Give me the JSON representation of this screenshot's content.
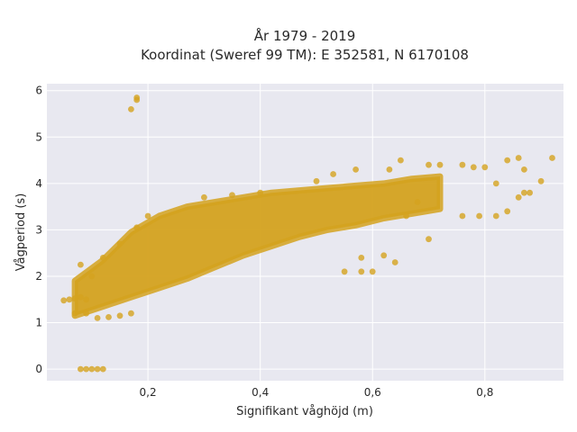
{
  "chart_data": {
    "type": "scatter",
    "title": "År 1979 - 2019",
    "subtitle": "Koordinat (Sweref 99 TM): E 352581, N 6170108",
    "xlabel": "Signifikant våghöjd (m)",
    "ylabel": "Vågperiod (s)",
    "xlim": [
      0.02,
      0.94
    ],
    "ylim": [
      -0.25,
      6.15
    ],
    "x_ticks": [
      0.2,
      0.4,
      0.6,
      0.8
    ],
    "x_tick_labels": [
      "0,2",
      "0,4",
      "0,6",
      "0,8"
    ],
    "y_ticks": [
      0,
      1,
      2,
      3,
      4,
      5,
      6
    ],
    "y_tick_labels": [
      "0",
      "1",
      "2",
      "3",
      "4",
      "5",
      "6"
    ],
    "grid": true,
    "legend": "none",
    "colors": {
      "marker": "#d4a21f",
      "plot_bg": "#e8e8f0",
      "grid": "#ffffff"
    },
    "series": [
      {
        "points": [
          [
            0.08,
            0
          ],
          [
            0.09,
            0
          ],
          [
            0.1,
            0
          ],
          [
            0.11,
            0
          ],
          [
            0.12,
            0
          ],
          [
            0.05,
            1.48
          ],
          [
            0.06,
            1.5
          ],
          [
            0.07,
            1.52
          ],
          [
            0.08,
            1.55
          ],
          [
            0.09,
            1.5
          ],
          [
            0.07,
            1.2
          ],
          [
            0.09,
            1.2
          ],
          [
            0.11,
            1.1
          ],
          [
            0.13,
            1.12
          ],
          [
            0.15,
            1.15
          ],
          [
            0.17,
            1.2
          ],
          [
            0.08,
            2.25
          ],
          [
            0.1,
            2.0
          ],
          [
            0.12,
            2.4
          ],
          [
            0.15,
            2.7
          ],
          [
            0.18,
            3.05
          ],
          [
            0.2,
            3.3
          ],
          [
            0.17,
            5.6
          ],
          [
            0.18,
            5.8
          ],
          [
            0.18,
            5.85
          ],
          [
            0.3,
            3.7
          ],
          [
            0.35,
            3.75
          ],
          [
            0.4,
            3.8
          ],
          [
            0.5,
            4.05
          ],
          [
            0.53,
            4.2
          ],
          [
            0.57,
            4.3
          ],
          [
            0.63,
            4.3
          ],
          [
            0.65,
            4.5
          ],
          [
            0.7,
            4.4
          ],
          [
            0.72,
            4.4
          ],
          [
            0.76,
            4.4
          ],
          [
            0.78,
            4.35
          ],
          [
            0.8,
            4.35
          ],
          [
            0.82,
            4.0
          ],
          [
            0.84,
            4.5
          ],
          [
            0.86,
            4.55
          ],
          [
            0.87,
            4.3
          ],
          [
            0.88,
            3.8
          ],
          [
            0.9,
            4.05
          ],
          [
            0.92,
            4.55
          ],
          [
            0.76,
            3.3
          ],
          [
            0.79,
            3.3
          ],
          [
            0.82,
            3.3
          ],
          [
            0.84,
            3.4
          ],
          [
            0.86,
            3.7
          ],
          [
            0.87,
            3.8
          ],
          [
            0.68,
            3.6
          ],
          [
            0.7,
            2.8
          ],
          [
            0.66,
            3.3
          ],
          [
            0.55,
            2.1
          ],
          [
            0.58,
            2.1
          ],
          [
            0.6,
            2.1
          ],
          [
            0.64,
            2.3
          ],
          [
            0.62,
            2.45
          ],
          [
            0.58,
            2.4
          ]
        ]
      }
    ],
    "dense_band": {
      "x_range": [
        0.07,
        0.72
      ],
      "lower_y": [
        1.15,
        1.35,
        1.55,
        1.75,
        1.95,
        2.2,
        2.45,
        2.65,
        2.85,
        3.0,
        3.1,
        3.25,
        3.35,
        3.45
      ],
      "upper_y": [
        1.9,
        2.35,
        2.95,
        3.3,
        3.5,
        3.6,
        3.7,
        3.8,
        3.85,
        3.9,
        3.95,
        4.0,
        4.1,
        4.15
      ]
    }
  }
}
